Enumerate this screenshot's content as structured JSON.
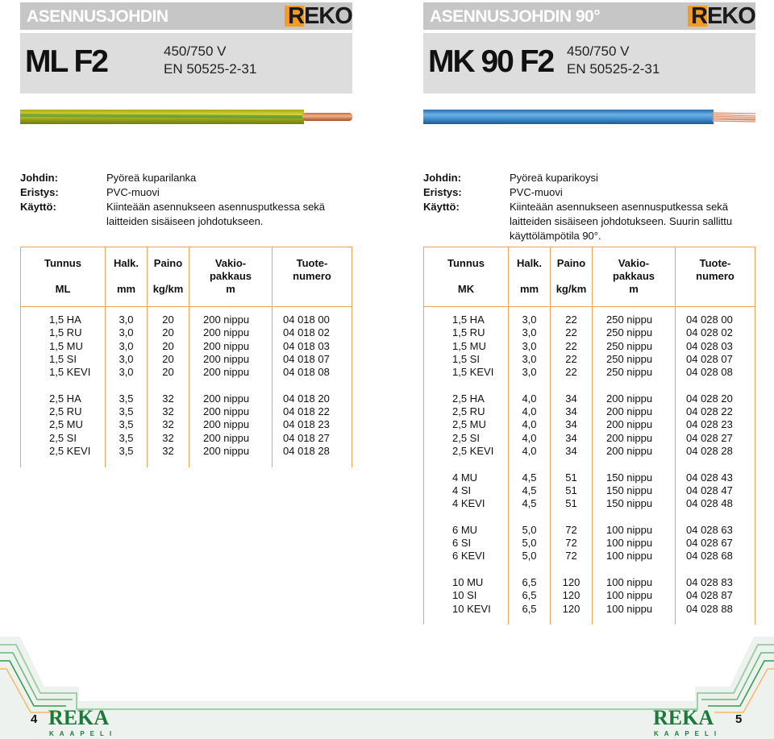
{
  "left": {
    "category": "ASENNUSJOHDIN",
    "brand": "REKO",
    "model": "ML F2",
    "spec_line1": "450/750 V",
    "spec_line2": "EN 50525-2-31",
    "cable_color": "#c8c220",
    "description": [
      {
        "label": "Johdin:",
        "value": "Pyöreä kuparilanka"
      },
      {
        "label": "Eristys:",
        "value": "PVC-muovi"
      },
      {
        "label": "Käyttö:",
        "value": "Kiinteään asennukseen asennusputkessa sekä"
      },
      {
        "label": "",
        "value": "laitteiden sisäiseen johdotukseen."
      }
    ],
    "headers": {
      "c1": [
        "Tunnus",
        "",
        "ML"
      ],
      "c2": [
        "Halk.",
        "",
        "mm"
      ],
      "c3": [
        "Paino",
        "",
        "kg/km"
      ],
      "c4": [
        "Vakio-",
        "pakkaus",
        "m"
      ],
      "c5": [
        "Tuote-",
        "numero",
        ""
      ]
    },
    "groups": [
      [
        [
          "1,5 HA",
          "3,0",
          "20",
          "200 nippu",
          "04 018 00"
        ],
        [
          "1,5 RU",
          "3,0",
          "20",
          "200 nippu",
          "04 018 02"
        ],
        [
          "1,5 MU",
          "3,0",
          "20",
          "200 nippu",
          "04 018 03"
        ],
        [
          "1,5 SI",
          "3,0",
          "20",
          "200 nippu",
          "04 018 07"
        ],
        [
          "1,5 KEVI",
          "3,0",
          "20",
          "200 nippu",
          "04 018 08"
        ]
      ],
      [
        [
          "2,5 HA",
          "3,5",
          "32",
          "200 nippu",
          "04 018 20"
        ],
        [
          "2,5 RU",
          "3,5",
          "32",
          "200 nippu",
          "04 018 22"
        ],
        [
          "2,5 MU",
          "3,5",
          "32",
          "200 nippu",
          "04 018 23"
        ],
        [
          "2,5 SI",
          "3,5",
          "32",
          "200 nippu",
          "04 018 27"
        ],
        [
          "2,5 KEVI",
          "3,5",
          "32",
          "200 nippu",
          "04 018 28"
        ]
      ]
    ],
    "page_number": "4"
  },
  "right": {
    "category": "ASENNUSJOHDIN 90°",
    "brand": "REKO",
    "model": "MK 90 F2",
    "spec_line1": "450/750 V",
    "spec_line2": "EN 50525-2-31",
    "cable_color": "#3f8fd0",
    "description": [
      {
        "label": "Johdin:",
        "value": "Pyöreä kuparikoysi"
      },
      {
        "label": "Eristys:",
        "value": "PVC-muovi"
      },
      {
        "label": "Käyttö:",
        "value": "Kiinteään asennukseen asennusputkessa sekä"
      },
      {
        "label": "",
        "value": "laitteiden sisäiseen johdotukseen. Suurin sallittu"
      },
      {
        "label": "",
        "value": "käyttölämpötila 90°."
      }
    ],
    "headers": {
      "c1": [
        "Tunnus",
        "",
        "MK"
      ],
      "c2": [
        "Halk.",
        "",
        "mm"
      ],
      "c3": [
        "Paino",
        "",
        "kg/km"
      ],
      "c4": [
        "Vakio-",
        "pakkaus",
        "m"
      ],
      "c5": [
        "Tuote-",
        "numero",
        ""
      ]
    },
    "groups": [
      [
        [
          "1,5 HA",
          "3,0",
          "22",
          "250 nippu",
          "04 028 00"
        ],
        [
          "1,5 RU",
          "3,0",
          "22",
          "250 nippu",
          "04 028 02"
        ],
        [
          "1,5 MU",
          "3,0",
          "22",
          "250 nippu",
          "04 028 03"
        ],
        [
          "1,5 SI",
          "3,0",
          "22",
          "250 nippu",
          "04 028 07"
        ],
        [
          "1,5 KEVI",
          "3,0",
          "22",
          "250 nippu",
          "04 028 08"
        ]
      ],
      [
        [
          "2,5 HA",
          "4,0",
          "34",
          "200 nippu",
          "04 028 20"
        ],
        [
          "2,5 RU",
          "4,0",
          "34",
          "200 nippu",
          "04 028 22"
        ],
        [
          "2,5 MU",
          "4,0",
          "34",
          "200 nippu",
          "04 028 23"
        ],
        [
          "2,5 SI",
          "4,0",
          "34",
          "200 nippu",
          "04 028 27"
        ],
        [
          "2,5 KEVI",
          "4,0",
          "34",
          "200 nippu",
          "04 028 28"
        ]
      ],
      [
        [
          "4 MU",
          "4,5",
          "51",
          "150 nippu",
          "04 028 43"
        ],
        [
          "4 SI",
          "4,5",
          "51",
          "150 nippu",
          "04 028 47"
        ],
        [
          "4 KEVI",
          "4,5",
          "51",
          "150 nippu",
          "04 028 48"
        ]
      ],
      [
        [
          "6 MU",
          "5,0",
          "72",
          "100 nippu",
          "04 028 63"
        ],
        [
          "6 SI",
          "5,0",
          "72",
          "100 nippu",
          "04 028 67"
        ],
        [
          "6 KEVI",
          "5,0",
          "72",
          "100 nippu",
          "04 028 68"
        ]
      ],
      [
        [
          "10 MU",
          "6,5",
          "120",
          "100 nippu",
          "04 028 83"
        ],
        [
          "10 SI",
          "6,5",
          "120",
          "100 nippu",
          "04 028 87"
        ],
        [
          "10 KEVI",
          "6,5",
          "120",
          "100 nippu",
          "04 028 88"
        ]
      ]
    ],
    "page_number": "5"
  },
  "footer": {
    "logo_main": "REKA",
    "logo_sub": "KAAPELI",
    "brand_green": "#1b7a3a",
    "accent_orange": "#f59a23"
  }
}
